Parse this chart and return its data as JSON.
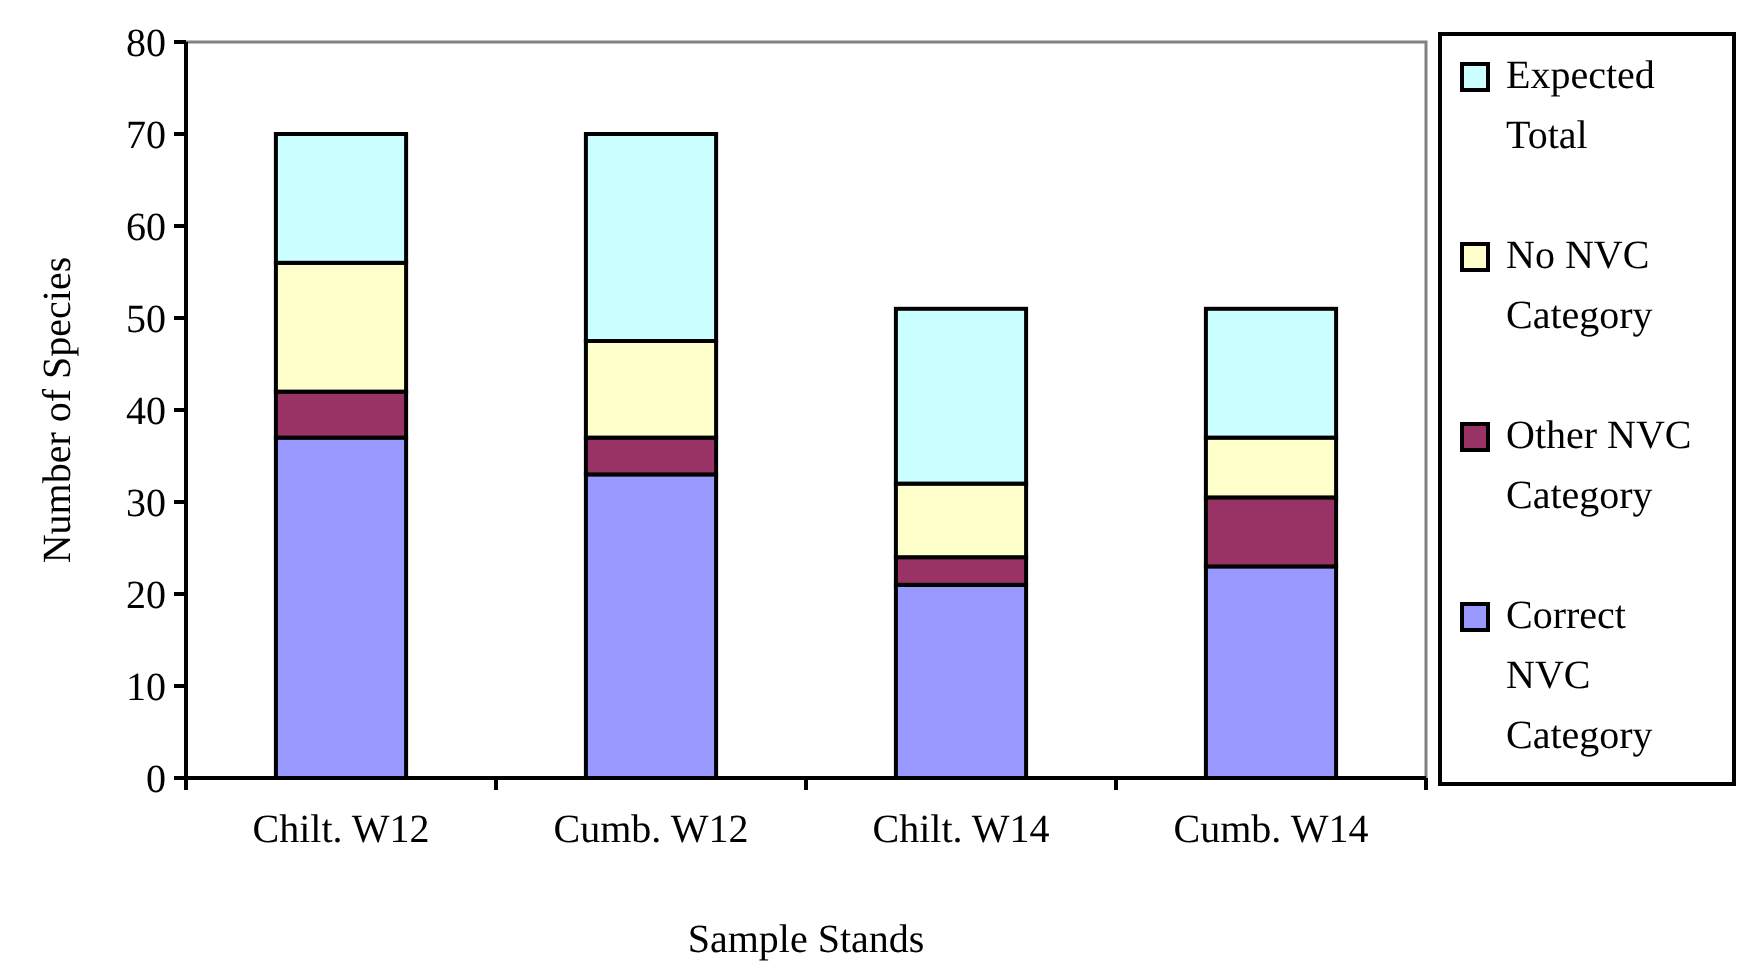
{
  "chart_data": {
    "type": "bar",
    "stacked": true,
    "xlabel": "Sample Stands",
    "ylabel": "Number of Species",
    "categories": [
      "Chilt. W12",
      "Cumb. W12",
      "Chilt. W14",
      "Cumb. W14"
    ],
    "series": [
      {
        "name": "Correct NVC Category",
        "color": "#9999ff",
        "values": [
          37,
          33,
          21,
          23
        ]
      },
      {
        "name": "Other NVC Category",
        "color": "#993366",
        "values": [
          5,
          4,
          3,
          7.5
        ]
      },
      {
        "name": "No NVC Category",
        "color": "#ffffcc",
        "values": [
          14,
          10.5,
          8,
          6.5
        ]
      },
      {
        "name": "Expected Total",
        "color": "#ccffff",
        "values": [
          14,
          22.5,
          19,
          14
        ]
      }
    ],
    "ylim": [
      0,
      80
    ],
    "yticks": [
      0,
      10,
      20,
      30,
      40,
      50,
      60,
      70,
      80
    ],
    "legend": "right",
    "grid": false
  }
}
